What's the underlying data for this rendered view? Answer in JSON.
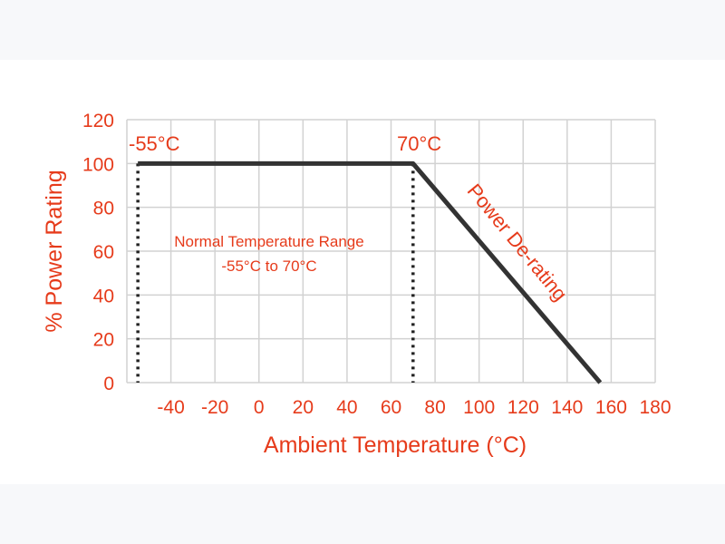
{
  "chart_data": {
    "type": "line",
    "title": "",
    "xlabel": "Ambient Temperature (°C)",
    "ylabel": "% Power Rating",
    "x_ticks": [
      -40,
      -20,
      0,
      20,
      40,
      60,
      80,
      100,
      120,
      140,
      160,
      180
    ],
    "y_ticks": [
      0,
      20,
      40,
      60,
      80,
      100,
      120
    ],
    "xlim": [
      -60,
      180
    ],
    "ylim": [
      0,
      120
    ],
    "grid": true,
    "series": [
      {
        "x": [
          -55,
          70,
          155
        ],
        "y": [
          100,
          100,
          0
        ]
      }
    ],
    "markers": [
      {
        "x": -55,
        "label": "-55°C"
      },
      {
        "x": 70,
        "label": "70°C"
      }
    ],
    "annotations": {
      "range_line1": "Normal Temperature Range",
      "range_line2": "-55°C to 70°C",
      "derating": "Power De-rating"
    },
    "colors": {
      "text": "#e63b1b",
      "line": "#333333",
      "grid": "#d2d2d2"
    }
  }
}
